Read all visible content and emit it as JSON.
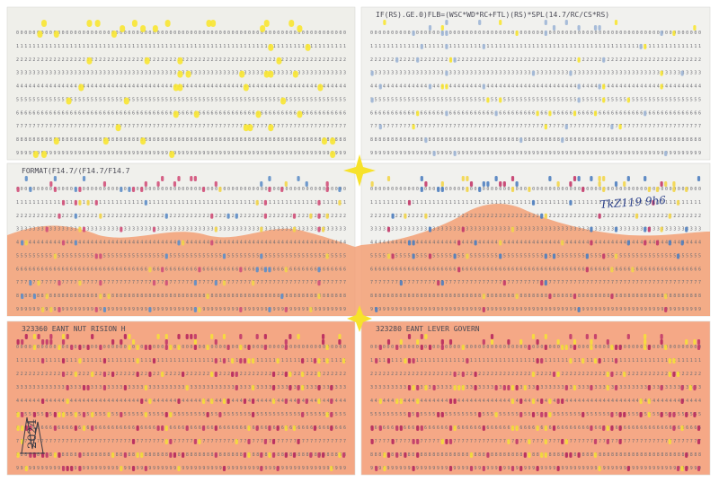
{
  "cards": [
    {
      "header": ""
    },
    {
      "header": "IF(RS).GE.0)FLB=(WSC*WD*RC+FTL)(RS)*SPL(14.7/RC/CS*RS)"
    },
    {
      "header": "FORMAT(F14.7/(F14.7/F14.7"
    },
    {
      "header": ""
    },
    {
      "header": "323360          EANT NUT RISION H"
    },
    {
      "header": "323280          EANT LEVER GOVERN"
    }
  ],
  "digit_rows": [
    "00000000000000000000000000000000000000000000000000000000000000000000000000000000",
    "11111111111111111111111111111111111111111111111111111111111111111111111111111111",
    "22222222222222222222222222222222222222222222222222222222222222222222222222222222",
    "33333333333333333333333333333333333333333333333333333333333333333333333333333333",
    "44444444444444444444444444444444444444444444444444444444444444444444444444444444",
    "55555555555555555555555555555555555555555555555555555555555555555555555555555555",
    "66666666666666666666666666666666666666666666666666666666666666666666666666666666",
    "77777777777777777777777777777777777777777777777777777777777777777777777777777777",
    "88888888888888888888888888888888888888888888888888888888888888888888888888888888",
    "99999999999999999999999999999999999999999999999999999999999999999999999999999999"
  ],
  "annotations": {
    "handwriting": "TkZ119 9h6",
    "signature_year": "2024"
  }
}
